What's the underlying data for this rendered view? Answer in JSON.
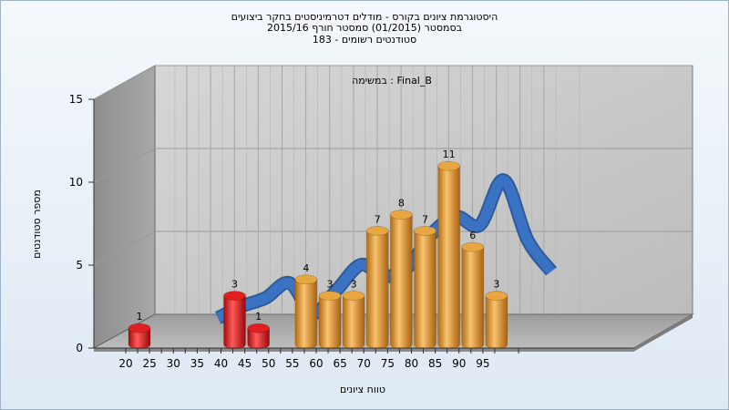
{
  "chart_data": {
    "type": "bar",
    "title_lines": [
      "היסטוגרמת ציונים בקורס - מודלים דטרמיניסטים בחקר ביצועים",
      "בסמסטר  (01/2015)  סמסטר חורף 2015/16",
      "183 - סטודנטים רשומים"
    ],
    "annotation": "במשימה : Final_B",
    "xlabel": "טווח ציונים",
    "ylabel": "מספר סטודנטים",
    "x_ticks": [
      "20",
      "25",
      "30",
      "35",
      "40",
      "45",
      "50",
      "55",
      "60",
      "65",
      "70",
      "75",
      "80",
      "85",
      "90",
      "95"
    ],
    "y_ticks": [
      "0",
      "5",
      "10",
      "15"
    ],
    "ylim": [
      0,
      15
    ],
    "bars": [
      {
        "x": 20,
        "value": 1,
        "color": "#e02020"
      },
      {
        "x": 40,
        "value": 3,
        "color": "#e02020"
      },
      {
        "x": 45,
        "value": 1,
        "color": "#e02020"
      },
      {
        "x": 55,
        "value": 4,
        "color": "#e8a640"
      },
      {
        "x": 60,
        "value": 3,
        "color": "#e8a640"
      },
      {
        "x": 65,
        "value": 3,
        "color": "#e8a640"
      },
      {
        "x": 70,
        "value": 7,
        "color": "#e8a640"
      },
      {
        "x": 75,
        "value": 8,
        "color": "#e8a640"
      },
      {
        "x": 80,
        "value": 7,
        "color": "#e8a640"
      },
      {
        "x": 85,
        "value": 11,
        "color": "#e8a640"
      },
      {
        "x": 90,
        "value": 6,
        "color": "#e8a640"
      },
      {
        "x": 95,
        "value": 3,
        "color": "#e8a640"
      }
    ],
    "curve": {
      "color": "#3a72c4",
      "x": [
        30,
        35,
        40,
        45,
        50,
        55,
        60,
        65,
        70,
        75,
        80,
        85,
        90,
        95,
        100
      ],
      "values": [
        0.5,
        1.2,
        1.7,
        2.6,
        0.8,
        2.2,
        3.7,
        3.0,
        3.6,
        5.6,
        6.6,
        6.1,
        8.8,
        5.2,
        3.3
      ]
    },
    "grid": true
  }
}
